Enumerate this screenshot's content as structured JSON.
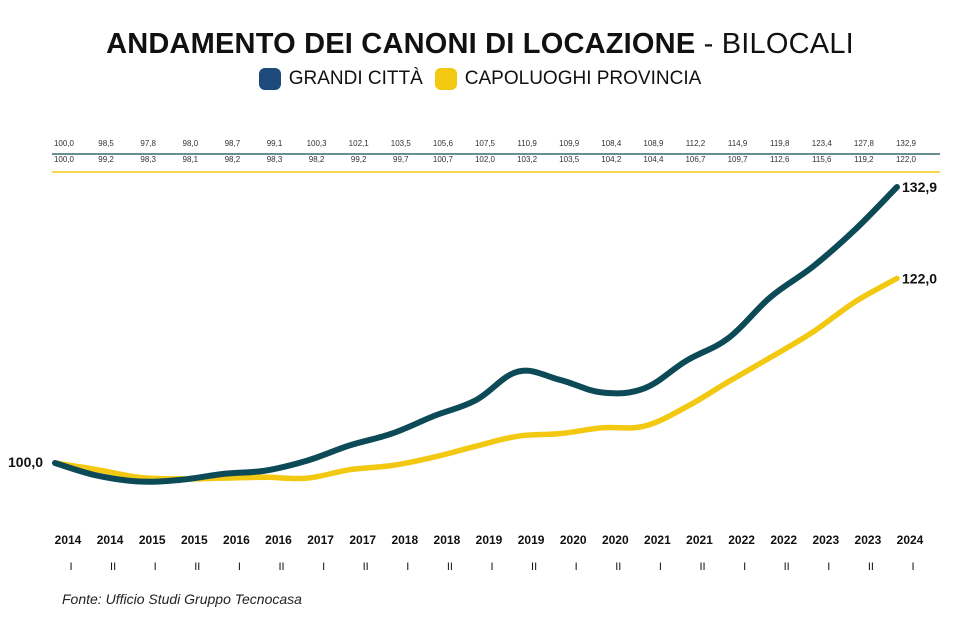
{
  "title": {
    "bold": "ANDAMENTO DEI CANONI DI LOCAZIONE",
    "light": " - BILOCALI"
  },
  "legend": [
    {
      "label": "GRANDI CITTÀ",
      "color": "#1d4a7a"
    },
    {
      "label": "CAPOLUOGHI PROVINCIA",
      "color": "#f2c811"
    }
  ],
  "source": "Fonte: Ufficio Studi Gruppo Tecnocasa",
  "chart_data": {
    "type": "line",
    "x_years": [
      "2014",
      "2014",
      "2015",
      "2015",
      "2016",
      "2016",
      "2017",
      "2017",
      "2018",
      "2018",
      "2019",
      "2019",
      "2020",
      "2020",
      "2021",
      "2021",
      "2022",
      "2022",
      "2023",
      "2023",
      "2024"
    ],
    "x_halves": [
      "I",
      "II",
      "I",
      "II",
      "I",
      "II",
      "I",
      "II",
      "I",
      "II",
      "I",
      "II",
      "I",
      "II",
      "I",
      "II",
      "I",
      "II",
      "I",
      "II",
      "I"
    ],
    "series": [
      {
        "name": "GRANDI CITTÀ",
        "color": "#0d4a57",
        "values": [
          100.0,
          98.5,
          97.8,
          98.0,
          98.7,
          99.1,
          100.3,
          102.1,
          103.5,
          105.6,
          107.5,
          110.9,
          109.9,
          108.4,
          108.9,
          112.2,
          114.9,
          119.8,
          123.4,
          127.8,
          132.9
        ],
        "labels": [
          "100,0",
          "98,5",
          "97,8",
          "98,0",
          "98,7",
          "99,1",
          "100,3",
          "102,1",
          "103,5",
          "105,6",
          "107,5",
          "110,9",
          "109,9",
          "108,4",
          "108,9",
          "112,2",
          "114,9",
          "119,8",
          "123,4",
          "127,8",
          "132,9"
        ]
      },
      {
        "name": "CAPOLUOGHI PROVINCIA",
        "color": "#f2c811",
        "values": [
          100.0,
          99.2,
          98.3,
          98.1,
          98.2,
          98.3,
          98.2,
          99.2,
          99.7,
          100.7,
          102.0,
          103.2,
          103.5,
          104.2,
          104.4,
          106.7,
          109.7,
          112.6,
          115.6,
          119.2,
          122.0
        ],
        "labels": [
          "100,0",
          "99,2",
          "98,3",
          "98,1",
          "98,2",
          "98,3",
          "98,2",
          "99,2",
          "99,7",
          "100,7",
          "102,0",
          "103,2",
          "103,5",
          "104,2",
          "104,4",
          "106,7",
          "109,7",
          "112,6",
          "115,6",
          "119,2",
          "122,0"
        ]
      }
    ],
    "start_label": "100,0",
    "end_labels": [
      "132,9",
      "122,0"
    ],
    "grid": false
  }
}
